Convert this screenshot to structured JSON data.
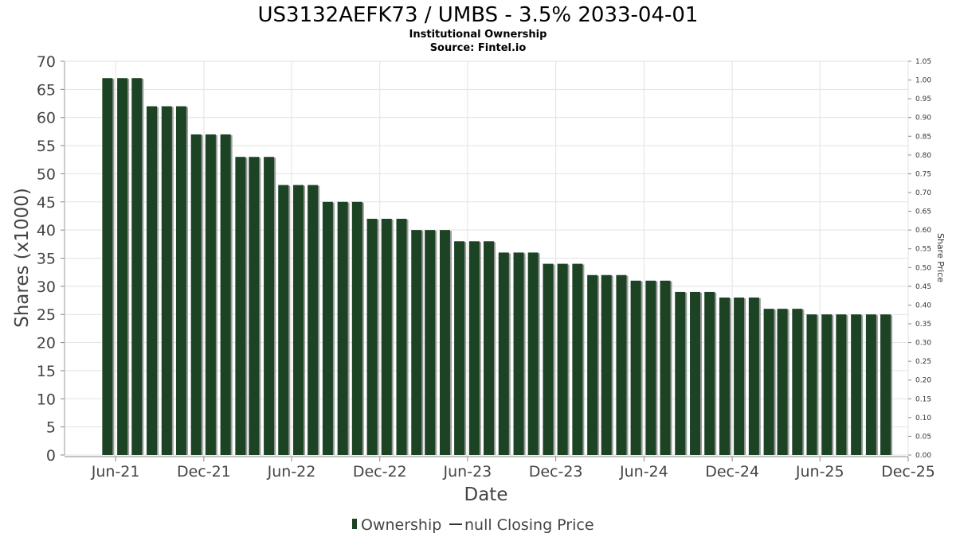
{
  "chart_data": {
    "type": "bar",
    "title": "US3132AEFK73 / UMBS - 3.5% 2033-04-01",
    "subtitle": "Institutional Ownership",
    "source": "Source: Fintel.io",
    "xlabel": "Date",
    "ylabel": "Shares (x1000)",
    "ylabel_right": "Share Price",
    "ylim": [
      0,
      70
    ],
    "ylim_right": [
      0,
      1.05
    ],
    "y_ticks": [
      0,
      5,
      10,
      15,
      20,
      25,
      30,
      35,
      40,
      45,
      50,
      55,
      60,
      65,
      70
    ],
    "y_ticks_right": [
      "0.00",
      "0.05",
      "0.10",
      "0.15",
      "0.20",
      "0.25",
      "0.30",
      "0.35",
      "0.40",
      "0.45",
      "0.50",
      "0.55",
      "0.60",
      "0.65",
      "0.70",
      "0.75",
      "0.80",
      "0.85",
      "0.90",
      "0.95",
      "1.00",
      "1.05"
    ],
    "x_range": [
      "2021-02-15",
      "2025-12-01"
    ],
    "x_ticks": [
      {
        "label": "Jun-21",
        "date": "2021-06-01"
      },
      {
        "label": "Dec-21",
        "date": "2021-12-01"
      },
      {
        "label": "Jun-22",
        "date": "2022-06-01"
      },
      {
        "label": "Dec-22",
        "date": "2022-12-01"
      },
      {
        "label": "Jun-23",
        "date": "2023-06-01"
      },
      {
        "label": "Dec-23",
        "date": "2023-12-01"
      },
      {
        "label": "Jun-24",
        "date": "2024-06-01"
      },
      {
        "label": "Dec-24",
        "date": "2024-12-01"
      },
      {
        "label": "Jun-25",
        "date": "2025-06-01"
      },
      {
        "label": "Dec-25",
        "date": "2025-12-01"
      }
    ],
    "grid": true,
    "legend_position": "bottom-center",
    "series": [
      {
        "name": "Ownership",
        "color": "#1c4424",
        "points": [
          {
            "date": "2021-05-15",
            "value": 67
          },
          {
            "date": "2021-06-15",
            "value": 67
          },
          {
            "date": "2021-07-15",
            "value": 67
          },
          {
            "date": "2021-08-15",
            "value": 62
          },
          {
            "date": "2021-09-15",
            "value": 62
          },
          {
            "date": "2021-10-15",
            "value": 62
          },
          {
            "date": "2021-11-15",
            "value": 57
          },
          {
            "date": "2021-12-15",
            "value": 57
          },
          {
            "date": "2022-01-15",
            "value": 57
          },
          {
            "date": "2022-02-15",
            "value": 53
          },
          {
            "date": "2022-03-15",
            "value": 53
          },
          {
            "date": "2022-04-15",
            "value": 53
          },
          {
            "date": "2022-05-15",
            "value": 48
          },
          {
            "date": "2022-06-15",
            "value": 48
          },
          {
            "date": "2022-07-15",
            "value": 48
          },
          {
            "date": "2022-08-15",
            "value": 45
          },
          {
            "date": "2022-09-15",
            "value": 45
          },
          {
            "date": "2022-10-15",
            "value": 45
          },
          {
            "date": "2022-11-15",
            "value": 42
          },
          {
            "date": "2022-12-15",
            "value": 42
          },
          {
            "date": "2023-01-15",
            "value": 42
          },
          {
            "date": "2023-02-15",
            "value": 40
          },
          {
            "date": "2023-03-15",
            "value": 40
          },
          {
            "date": "2023-04-15",
            "value": 40
          },
          {
            "date": "2023-05-15",
            "value": 38
          },
          {
            "date": "2023-06-15",
            "value": 38
          },
          {
            "date": "2023-07-15",
            "value": 38
          },
          {
            "date": "2023-08-15",
            "value": 36
          },
          {
            "date": "2023-09-15",
            "value": 36
          },
          {
            "date": "2023-10-15",
            "value": 36
          },
          {
            "date": "2023-11-15",
            "value": 34
          },
          {
            "date": "2023-12-15",
            "value": 34
          },
          {
            "date": "2024-01-15",
            "value": 34
          },
          {
            "date": "2024-02-15",
            "value": 32
          },
          {
            "date": "2024-03-15",
            "value": 32
          },
          {
            "date": "2024-04-15",
            "value": 32
          },
          {
            "date": "2024-05-15",
            "value": 31
          },
          {
            "date": "2024-06-15",
            "value": 31
          },
          {
            "date": "2024-07-15",
            "value": 31
          },
          {
            "date": "2024-08-15",
            "value": 29
          },
          {
            "date": "2024-09-15",
            "value": 29
          },
          {
            "date": "2024-10-15",
            "value": 29
          },
          {
            "date": "2024-11-15",
            "value": 28
          },
          {
            "date": "2024-12-15",
            "value": 28
          },
          {
            "date": "2025-01-15",
            "value": 28
          },
          {
            "date": "2025-02-15",
            "value": 26
          },
          {
            "date": "2025-03-15",
            "value": 26
          },
          {
            "date": "2025-04-15",
            "value": 26
          },
          {
            "date": "2025-05-15",
            "value": 25
          },
          {
            "date": "2025-06-15",
            "value": 25
          },
          {
            "date": "2025-07-15",
            "value": 25
          },
          {
            "date": "2025-08-15",
            "value": 25
          },
          {
            "date": "2025-09-15",
            "value": 25
          },
          {
            "date": "2025-10-15",
            "value": 25
          }
        ]
      },
      {
        "name": "null Closing Price",
        "color": "#333333",
        "points": []
      }
    ]
  }
}
